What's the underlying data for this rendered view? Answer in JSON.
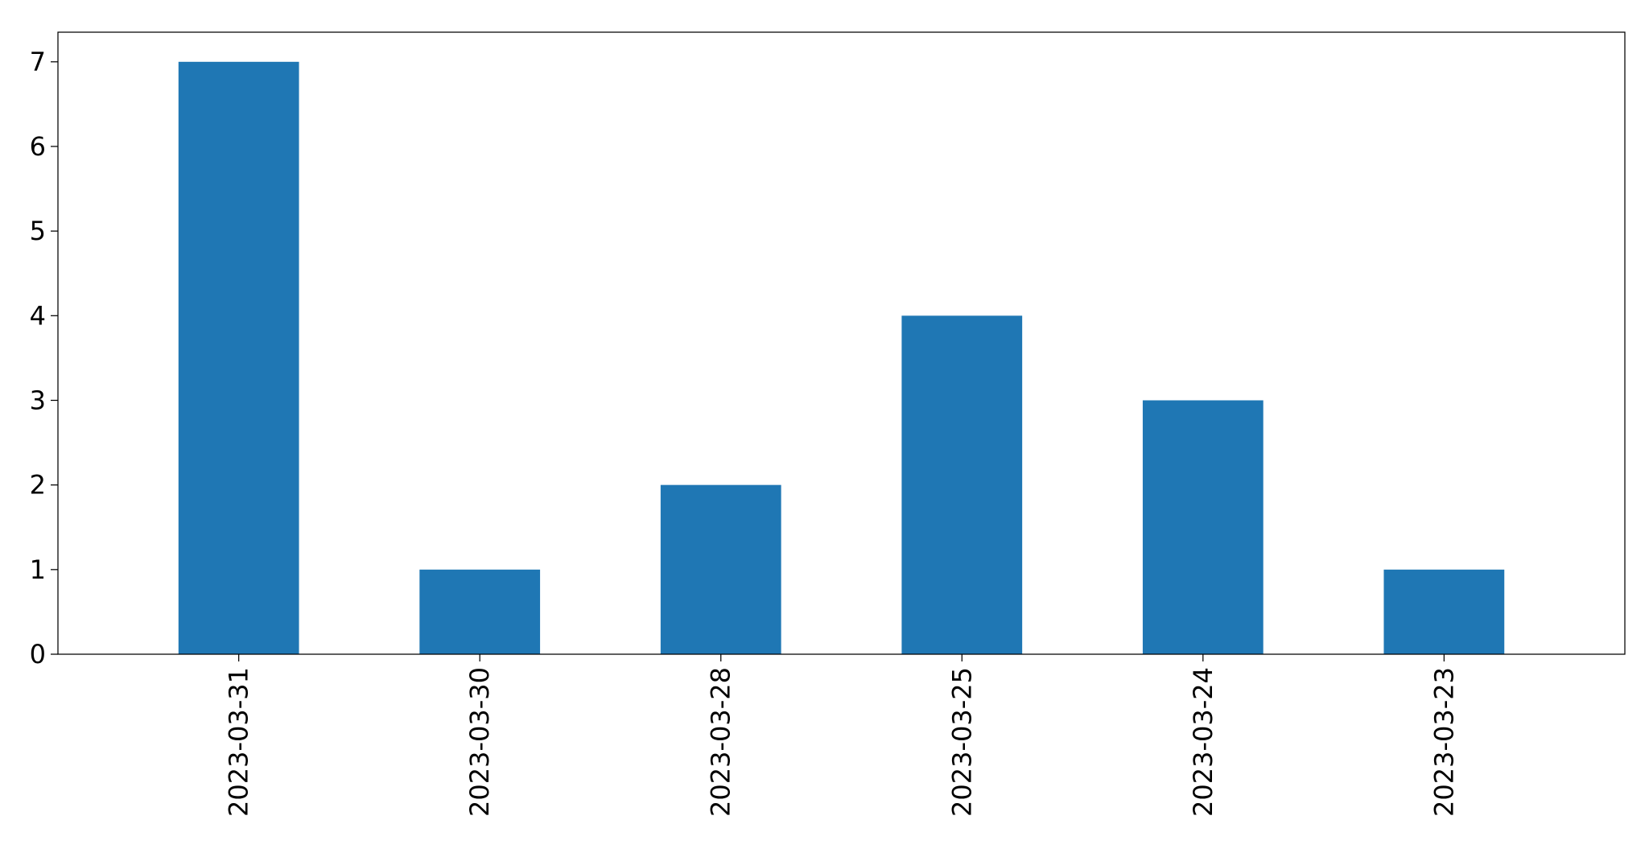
{
  "chart_data": {
    "type": "bar",
    "title": "",
    "xlabel": "",
    "ylabel": "",
    "categories": [
      "2023-03-31",
      "2023-03-30",
      "2023-03-28",
      "2023-03-25",
      "2023-03-24",
      "2023-03-23"
    ],
    "values": [
      7,
      1,
      2,
      4,
      3,
      1
    ],
    "ylim": [
      0,
      7.35
    ],
    "yticks": [
      0,
      1,
      2,
      3,
      4,
      5,
      6,
      7
    ],
    "ytick_labels": [
      "0",
      "1",
      "2",
      "3",
      "4",
      "5",
      "6",
      "7"
    ],
    "grid": false,
    "legend": "none",
    "bar_color": "#1f77b4"
  }
}
